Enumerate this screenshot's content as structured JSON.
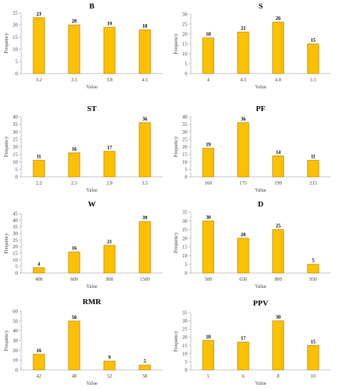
{
  "chart_data": [
    {
      "type": "bar",
      "title": "B",
      "categories": [
        "3.2",
        "3.5",
        "3.8",
        "4.5"
      ],
      "values": [
        23,
        20,
        19,
        18
      ],
      "xlabel": "Value",
      "ylabel": "Frequency",
      "ylim": [
        0,
        25
      ],
      "yticks": [
        0,
        5,
        10,
        15,
        20,
        25
      ]
    },
    {
      "type": "bar",
      "title": "S",
      "categories": [
        "4",
        "4.3",
        "4.8",
        "5.5"
      ],
      "values": [
        18,
        21,
        26,
        15
      ],
      "xlabel": "Value",
      "ylabel": "Frequency",
      "ylim": [
        0,
        30
      ],
      "yticks": [
        0,
        5,
        10,
        15,
        20,
        25,
        30
      ]
    },
    {
      "type": "bar",
      "title": "ST",
      "categories": [
        "2.2",
        "2.5",
        "2.8",
        "3.5"
      ],
      "values": [
        11,
        16,
        17,
        36
      ],
      "xlabel": "Value",
      "ylabel": "Frequency",
      "ylim": [
        0,
        40
      ],
      "yticks": [
        0,
        5,
        10,
        15,
        20,
        25,
        30,
        35,
        40
      ]
    },
    {
      "type": "bar",
      "title": "PF",
      "categories": [
        "160",
        "175",
        "190",
        "215"
      ],
      "values": [
        19,
        36,
        14,
        11
      ],
      "xlabel": "Value",
      "ylabel": "Frequency",
      "ylim": [
        0,
        40
      ],
      "yticks": [
        0,
        5,
        10,
        15,
        20,
        25,
        30,
        35,
        40
      ]
    },
    {
      "type": "bar",
      "title": "W",
      "categories": [
        "400",
        "600",
        "900",
        "1500"
      ],
      "values": [
        4,
        16,
        21,
        39
      ],
      "xlabel": "Value",
      "ylabel": "Frequency",
      "ylim": [
        0,
        45
      ],
      "yticks": [
        0,
        5,
        10,
        15,
        20,
        25,
        30,
        35,
        40,
        45
      ]
    },
    {
      "type": "bar",
      "title": "D",
      "categories": [
        "500",
        "650",
        "800",
        "950"
      ],
      "values": [
        30,
        20,
        25,
        5
      ],
      "xlabel": "Value",
      "ylabel": "Frequency",
      "ylim": [
        0,
        35
      ],
      "yticks": [
        0,
        5,
        10,
        15,
        20,
        25,
        30,
        35
      ]
    },
    {
      "type": "bar",
      "title": "RMR",
      "categories": [
        "42",
        "48",
        "52",
        "58"
      ],
      "values": [
        16,
        50,
        9,
        5
      ],
      "xlabel": "Value",
      "ylabel": "Frequency",
      "ylim": [
        0,
        60
      ],
      "yticks": [
        0,
        10,
        20,
        30,
        40,
        50,
        60
      ]
    },
    {
      "type": "bar",
      "title": "PPV",
      "categories": [
        "5",
        "6",
        "8",
        "10"
      ],
      "values": [
        18,
        17,
        30,
        15
      ],
      "xlabel": "Value",
      "ylabel": "Frequency",
      "ylim": [
        0,
        35
      ],
      "yticks": [
        0,
        5,
        10,
        15,
        20,
        25,
        30,
        35
      ]
    }
  ],
  "colors": {
    "bar_fill": "#FFC000",
    "bar_stroke": "#C08A00",
    "axis": "#BFBFBF",
    "text": "#404040",
    "title": "#000000"
  }
}
